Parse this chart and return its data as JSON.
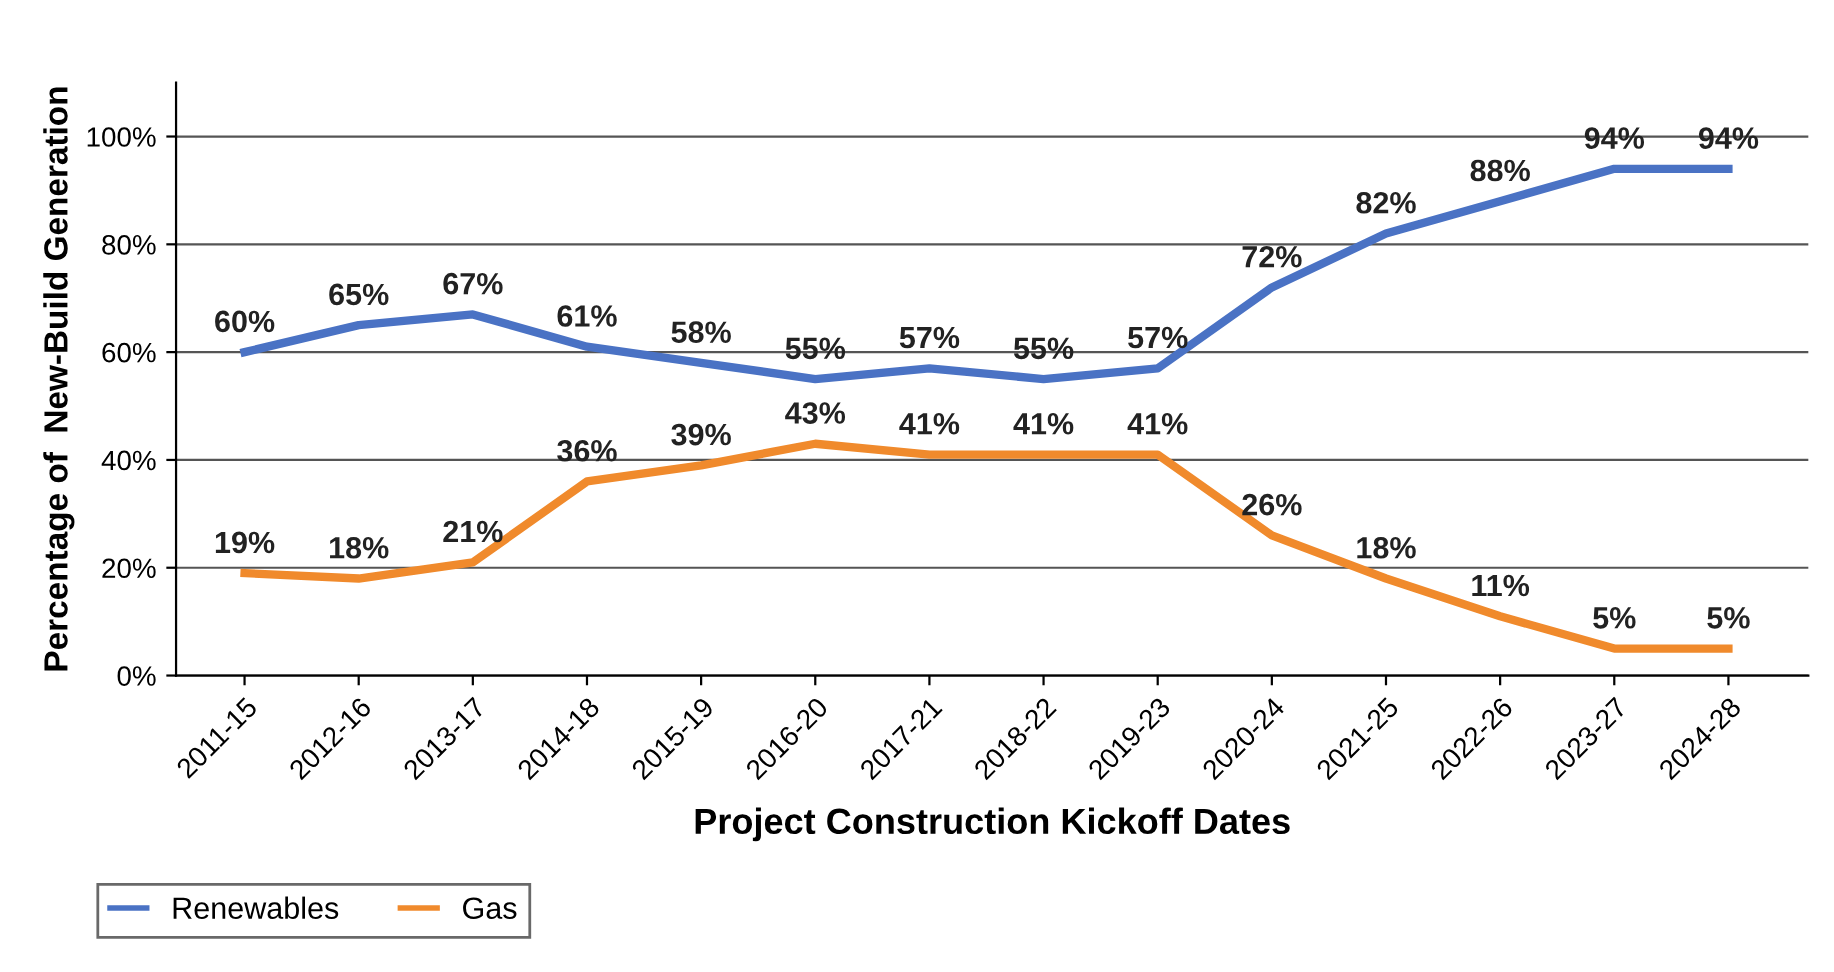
{
  "chart_data": {
    "type": "line",
    "xlabel": "Project Construction Kickoff Dates",
    "ylabel": "Percentage of  New-Build Generation",
    "categories": [
      "2011-15",
      "2012-16",
      "2013-17",
      "2014-18",
      "2015-19",
      "2016-20",
      "2017-21",
      "2018-22",
      "2019-23",
      "2020-24",
      "2021-25",
      "2022-26",
      "2023-27",
      "2024-28"
    ],
    "series": [
      {
        "name": "Renewables",
        "color": "#4a72c4",
        "values": [
          60,
          65,
          67,
          61,
          58,
          55,
          57,
          55,
          57,
          72,
          82,
          88,
          94,
          94
        ],
        "value_labels": [
          "60%",
          "65%",
          "67%",
          "61%",
          "58%",
          "55%",
          "57%",
          "55%",
          "57%",
          "72%",
          "82%",
          "88%",
          "94%",
          "94%"
        ]
      },
      {
        "name": "Gas",
        "color": "#f08a2c",
        "values": [
          19,
          18,
          21,
          36,
          39,
          43,
          41,
          41,
          41,
          26,
          18,
          11,
          5,
          5
        ],
        "value_labels": [
          "19%",
          "18%",
          "21%",
          "36%",
          "39%",
          "43%",
          "41%",
          "41%",
          "41%",
          "26%",
          "18%",
          "11%",
          "5%",
          "5%"
        ]
      }
    ],
    "ylim": [
      0,
      110
    ],
    "yticks": [
      {
        "value": 0,
        "label": "0%"
      },
      {
        "value": 20,
        "label": "20%"
      },
      {
        "value": 40,
        "label": "40%"
      },
      {
        "value": 60,
        "label": "60%"
      },
      {
        "value": 80,
        "label": "80%"
      },
      {
        "value": 100,
        "label": "100%"
      }
    ],
    "grid": "y",
    "legend": "bottom left",
    "marker": "none",
    "line_style": "solid"
  }
}
